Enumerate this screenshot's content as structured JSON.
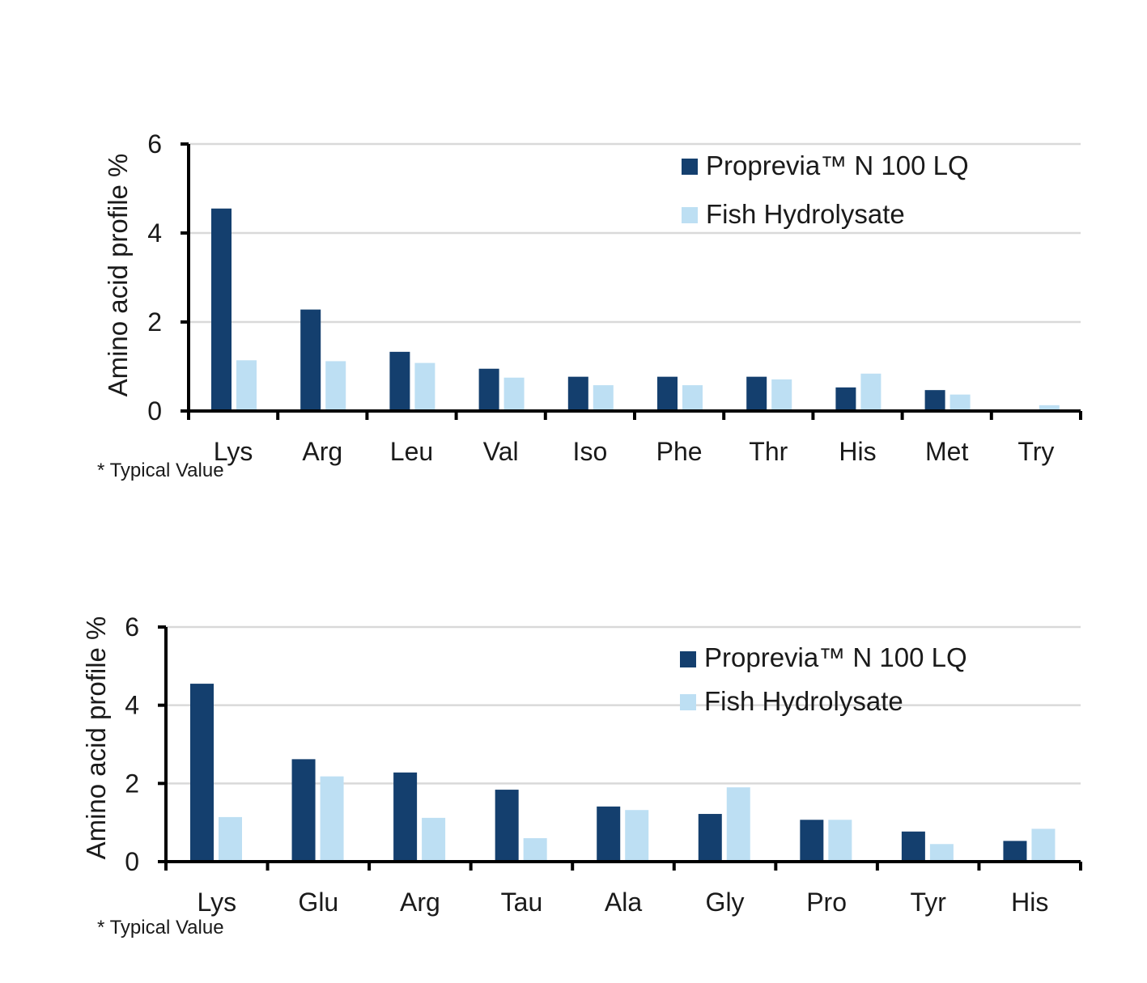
{
  "chart_data": [
    {
      "type": "bar",
      "categories": [
        "Lys",
        "Arg",
        "Leu",
        "Val",
        "Iso",
        "Phe",
        "Thr",
        "His",
        "Met",
        "Try"
      ],
      "series": [
        {
          "name": "Proprevia™ N 100 LQ",
          "color": "#143f6e",
          "values": [
            4.55,
            2.28,
            1.33,
            0.95,
            0.77,
            0.77,
            0.77,
            0.53,
            0.47,
            0
          ]
        },
        {
          "name": "Fish Hydrolysate",
          "color": "#bddff3",
          "values": [
            1.14,
            1.12,
            1.08,
            0.75,
            0.58,
            0.58,
            0.71,
            0.84,
            0.37,
            0.13
          ]
        }
      ],
      "ylabel": "Amino acid profile %",
      "xlabel": "",
      "ylim": [
        0,
        6
      ],
      "yticks": [
        0,
        2,
        4,
        6
      ],
      "grid": true,
      "legend_position": "top-right",
      "footnote": "* Typical Value"
    },
    {
      "type": "bar",
      "categories": [
        "Lys",
        "Glu",
        "Arg",
        "Tau",
        "Ala",
        "Gly",
        "Pro",
        "Tyr",
        "His"
      ],
      "series": [
        {
          "name": "Proprevia™ N 100 LQ",
          "color": "#143f6e",
          "values": [
            4.55,
            2.62,
            2.28,
            1.84,
            1.41,
            1.22,
            1.07,
            0.77,
            0.53
          ]
        },
        {
          "name": "Fish Hydrolysate",
          "color": "#bddff3",
          "values": [
            1.14,
            2.18,
            1.12,
            0.6,
            1.32,
            1.9,
            1.07,
            0.45,
            0.84
          ]
        }
      ],
      "ylabel": "Amino acid profile %",
      "xlabel": "",
      "ylim": [
        0,
        6
      ],
      "yticks": [
        0,
        2,
        4,
        6
      ],
      "grid": true,
      "legend_position": "top-right",
      "footnote": "* Typical Value"
    }
  ]
}
